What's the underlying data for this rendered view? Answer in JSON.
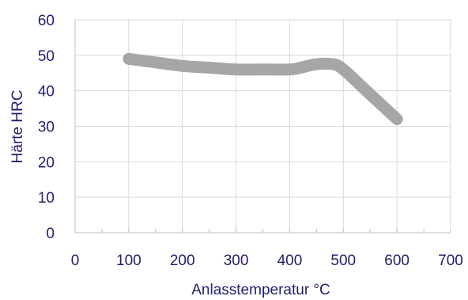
{
  "chart_data": {
    "type": "line",
    "title": "",
    "xlabel": "Anlasstemperatur °C",
    "ylabel": "Härte HRC",
    "xlim": [
      0,
      700
    ],
    "ylim": [
      0,
      60
    ],
    "xticks": [
      0,
      100,
      200,
      300,
      400,
      500,
      600,
      700
    ],
    "yticks": [
      0,
      10,
      20,
      30,
      40,
      50,
      60
    ],
    "grid": true,
    "legend": "none",
    "series": [
      {
        "color": "#a6a6a6",
        "x": [
          100,
          150,
          200,
          250,
          300,
          350,
          400,
          420,
          450,
          480,
          500,
          550,
          600
        ],
        "y": [
          49,
          48,
          47,
          46.5,
          46,
          46,
          46,
          46.5,
          47.5,
          47.5,
          46,
          39,
          32
        ]
      }
    ]
  },
  "colors": {
    "text": "#1f1f6b",
    "grid": "#d9d9d9",
    "axis": "#bfbfbf"
  }
}
